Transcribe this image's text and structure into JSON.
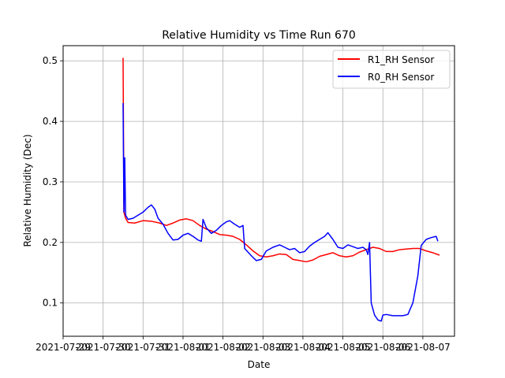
{
  "chart_data": {
    "type": "line",
    "title": "Relative Humidity vs Time Run 670",
    "xlabel": "Date",
    "ylabel": "Relative Humidity (Dec)",
    "grid": true,
    "legend_position": "top-right",
    "xlim": [
      "2021-07-29T00:00",
      "2021-08-07T19:00"
    ],
    "ylim": [
      0.045,
      0.525
    ],
    "x_ticks": [
      "2021-07-29",
      "2021-07-30",
      "2021-07-31",
      "2021-08-01",
      "2021-08-02",
      "2021-08-03",
      "2021-08-04",
      "2021-08-05",
      "2021-08-06",
      "2021-08-07"
    ],
    "x_tick_labels": [
      "2021-07-29",
      "2021-07-30",
      "2021-07-31",
      "2021-08-01",
      "2021-08-02",
      "2021-08-03",
      "2021-08-04",
      "2021-08-05",
      "2021-08-06",
      "2021-08-07"
    ],
    "y_ticks": [
      0.1,
      0.2,
      0.3,
      0.4,
      0.5
    ],
    "y_tick_labels": [
      "0.1",
      "0.2",
      "0.3",
      "0.4",
      "0.5"
    ],
    "series": [
      {
        "name": "R1_RH Sensor",
        "color": "#ff0000",
        "points": [
          [
            "2021-07-30T12:00",
            0.505
          ],
          [
            "2021-07-30T12:30",
            0.25
          ],
          [
            "2021-07-30T13:30",
            0.24
          ],
          [
            "2021-07-30T15:00",
            0.233
          ],
          [
            "2021-07-30T19:00",
            0.232
          ],
          [
            "2021-07-31T00:00",
            0.236
          ],
          [
            "2021-07-31T05:00",
            0.235
          ],
          [
            "2021-07-31T10:00",
            0.232
          ],
          [
            "2021-07-31T14:00",
            0.228
          ],
          [
            "2021-07-31T18:00",
            0.232
          ],
          [
            "2021-07-31T22:00",
            0.237
          ],
          [
            "2021-08-01T02:00",
            0.239
          ],
          [
            "2021-08-01T06:00",
            0.236
          ],
          [
            "2021-08-01T10:00",
            0.228
          ],
          [
            "2021-08-01T14:00",
            0.222
          ],
          [
            "2021-08-01T18:00",
            0.218
          ],
          [
            "2021-08-01T22:00",
            0.213
          ],
          [
            "2021-08-02T02:00",
            0.212
          ],
          [
            "2021-08-02T06:00",
            0.21
          ],
          [
            "2021-08-02T10:00",
            0.205
          ],
          [
            "2021-08-02T14:00",
            0.196
          ],
          [
            "2021-08-02T18:00",
            0.186
          ],
          [
            "2021-08-02T22:00",
            0.178
          ],
          [
            "2021-08-03T02:00",
            0.176
          ],
          [
            "2021-08-03T06:00",
            0.178
          ],
          [
            "2021-08-03T10:00",
            0.181
          ],
          [
            "2021-08-03T14:00",
            0.18
          ],
          [
            "2021-08-03T18:00",
            0.172
          ],
          [
            "2021-08-03T22:00",
            0.17
          ],
          [
            "2021-08-04T02:00",
            0.168
          ],
          [
            "2021-08-04T06:00",
            0.171
          ],
          [
            "2021-08-04T10:00",
            0.177
          ],
          [
            "2021-08-04T14:00",
            0.18
          ],
          [
            "2021-08-04T18:00",
            0.183
          ],
          [
            "2021-08-04T22:00",
            0.178
          ],
          [
            "2021-08-05T02:00",
            0.176
          ],
          [
            "2021-08-05T06:00",
            0.178
          ],
          [
            "2021-08-05T10:00",
            0.184
          ],
          [
            "2021-08-05T14:00",
            0.188
          ],
          [
            "2021-08-05T18:00",
            0.192
          ],
          [
            "2021-08-05T22:00",
            0.19
          ],
          [
            "2021-08-06T02:00",
            0.185
          ],
          [
            "2021-08-06T06:00",
            0.185
          ],
          [
            "2021-08-06T10:00",
            0.188
          ],
          [
            "2021-08-06T14:00",
            0.189
          ],
          [
            "2021-08-06T18:00",
            0.19
          ],
          [
            "2021-08-06T22:00",
            0.19
          ],
          [
            "2021-08-07T02:00",
            0.186
          ],
          [
            "2021-08-07T06:00",
            0.183
          ],
          [
            "2021-08-07T10:00",
            0.179
          ]
        ]
      },
      {
        "name": "R0_RH Sensor",
        "color": "#0000ff",
        "points": [
          [
            "2021-07-30T12:00",
            0.43
          ],
          [
            "2021-07-30T12:30",
            0.25
          ],
          [
            "2021-07-30T13:00",
            0.34
          ],
          [
            "2021-07-30T13:30",
            0.245
          ],
          [
            "2021-07-30T15:00",
            0.238
          ],
          [
            "2021-07-30T18:00",
            0.24
          ],
          [
            "2021-07-30T21:00",
            0.245
          ],
          [
            "2021-07-31T00:00",
            0.25
          ],
          [
            "2021-07-31T03:00",
            0.258
          ],
          [
            "2021-07-31T05:00",
            0.262
          ],
          [
            "2021-07-31T07:00",
            0.255
          ],
          [
            "2021-07-31T09:00",
            0.24
          ],
          [
            "2021-07-31T12:00",
            0.23
          ],
          [
            "2021-07-31T15:00",
            0.215
          ],
          [
            "2021-07-31T18:00",
            0.204
          ],
          [
            "2021-07-31T21:00",
            0.205
          ],
          [
            "2021-08-01T00:00",
            0.212
          ],
          [
            "2021-08-01T03:00",
            0.215
          ],
          [
            "2021-08-01T06:00",
            0.21
          ],
          [
            "2021-08-01T09:00",
            0.204
          ],
          [
            "2021-08-01T11:00",
            0.202
          ],
          [
            "2021-08-01T12:00",
            0.238
          ],
          [
            "2021-08-01T14:00",
            0.224
          ],
          [
            "2021-08-01T17:00",
            0.215
          ],
          [
            "2021-08-01T20:00",
            0.22
          ],
          [
            "2021-08-01T23:00",
            0.228
          ],
          [
            "2021-08-02T02:00",
            0.234
          ],
          [
            "2021-08-02T04:00",
            0.236
          ],
          [
            "2021-08-02T07:00",
            0.23
          ],
          [
            "2021-08-02T10:00",
            0.225
          ],
          [
            "2021-08-02T12:00",
            0.228
          ],
          [
            "2021-08-02T13:00",
            0.19
          ],
          [
            "2021-08-02T17:00",
            0.178
          ],
          [
            "2021-08-02T20:00",
            0.17
          ],
          [
            "2021-08-02T23:00",
            0.172
          ],
          [
            "2021-08-03T02:00",
            0.186
          ],
          [
            "2021-08-03T06:00",
            0.192
          ],
          [
            "2021-08-03T10:00",
            0.196
          ],
          [
            "2021-08-03T13:00",
            0.192
          ],
          [
            "2021-08-03T16:00",
            0.188
          ],
          [
            "2021-08-03T19:00",
            0.19
          ],
          [
            "2021-08-03T22:00",
            0.183
          ],
          [
            "2021-08-04T01:00",
            0.185
          ],
          [
            "2021-08-04T04:00",
            0.194
          ],
          [
            "2021-08-04T07:00",
            0.2
          ],
          [
            "2021-08-04T10:00",
            0.205
          ],
          [
            "2021-08-04T13:00",
            0.21
          ],
          [
            "2021-08-04T15:00",
            0.216
          ],
          [
            "2021-08-04T18:00",
            0.205
          ],
          [
            "2021-08-04T21:00",
            0.192
          ],
          [
            "2021-08-05T00:00",
            0.19
          ],
          [
            "2021-08-05T03:00",
            0.196
          ],
          [
            "2021-08-05T06:00",
            0.193
          ],
          [
            "2021-08-05T09:00",
            0.19
          ],
          [
            "2021-08-05T12:00",
            0.192
          ],
          [
            "2021-08-05T14:00",
            0.188
          ],
          [
            "2021-08-05T15:00",
            0.18
          ],
          [
            "2021-08-05T16:00",
            0.2
          ],
          [
            "2021-08-05T17:00",
            0.1
          ],
          [
            "2021-08-05T19:00",
            0.08
          ],
          [
            "2021-08-05T21:00",
            0.072
          ],
          [
            "2021-08-05T23:00",
            0.07
          ],
          [
            "2021-08-06T00:00",
            0.08
          ],
          [
            "2021-08-06T02:00",
            0.081
          ],
          [
            "2021-08-06T06:00",
            0.079
          ],
          [
            "2021-08-06T12:00",
            0.079
          ],
          [
            "2021-08-06T15:00",
            0.081
          ],
          [
            "2021-08-06T18:00",
            0.1
          ],
          [
            "2021-08-06T21:00",
            0.145
          ],
          [
            "2021-08-06T23:00",
            0.195
          ],
          [
            "2021-08-07T02:00",
            0.205
          ],
          [
            "2021-08-07T05:00",
            0.208
          ],
          [
            "2021-08-07T08:00",
            0.21
          ],
          [
            "2021-08-07T09:00",
            0.202
          ]
        ]
      }
    ]
  }
}
